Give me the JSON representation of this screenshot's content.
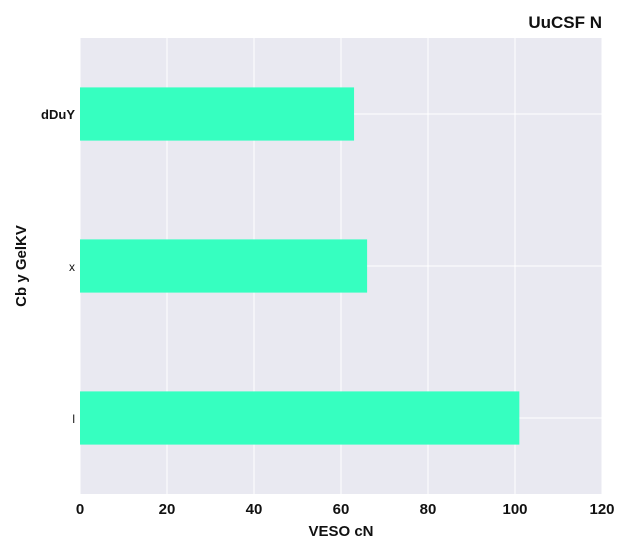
{
  "chart_data": {
    "type": "bar",
    "orientation": "horizontal",
    "title": "UuCSF N",
    "xlabel": "VESO  cN",
    "ylabel": "Cb y GelKV",
    "categories": [
      "dDuY",
      "x",
      "l"
    ],
    "values": [
      63,
      66,
      101
    ],
    "xlim": [
      0,
      120
    ],
    "xticks": [
      0,
      20,
      40,
      60,
      80,
      100,
      120
    ],
    "grid": true,
    "bar_color": "#36ffc0",
    "background_color": "#e9e9f1"
  }
}
